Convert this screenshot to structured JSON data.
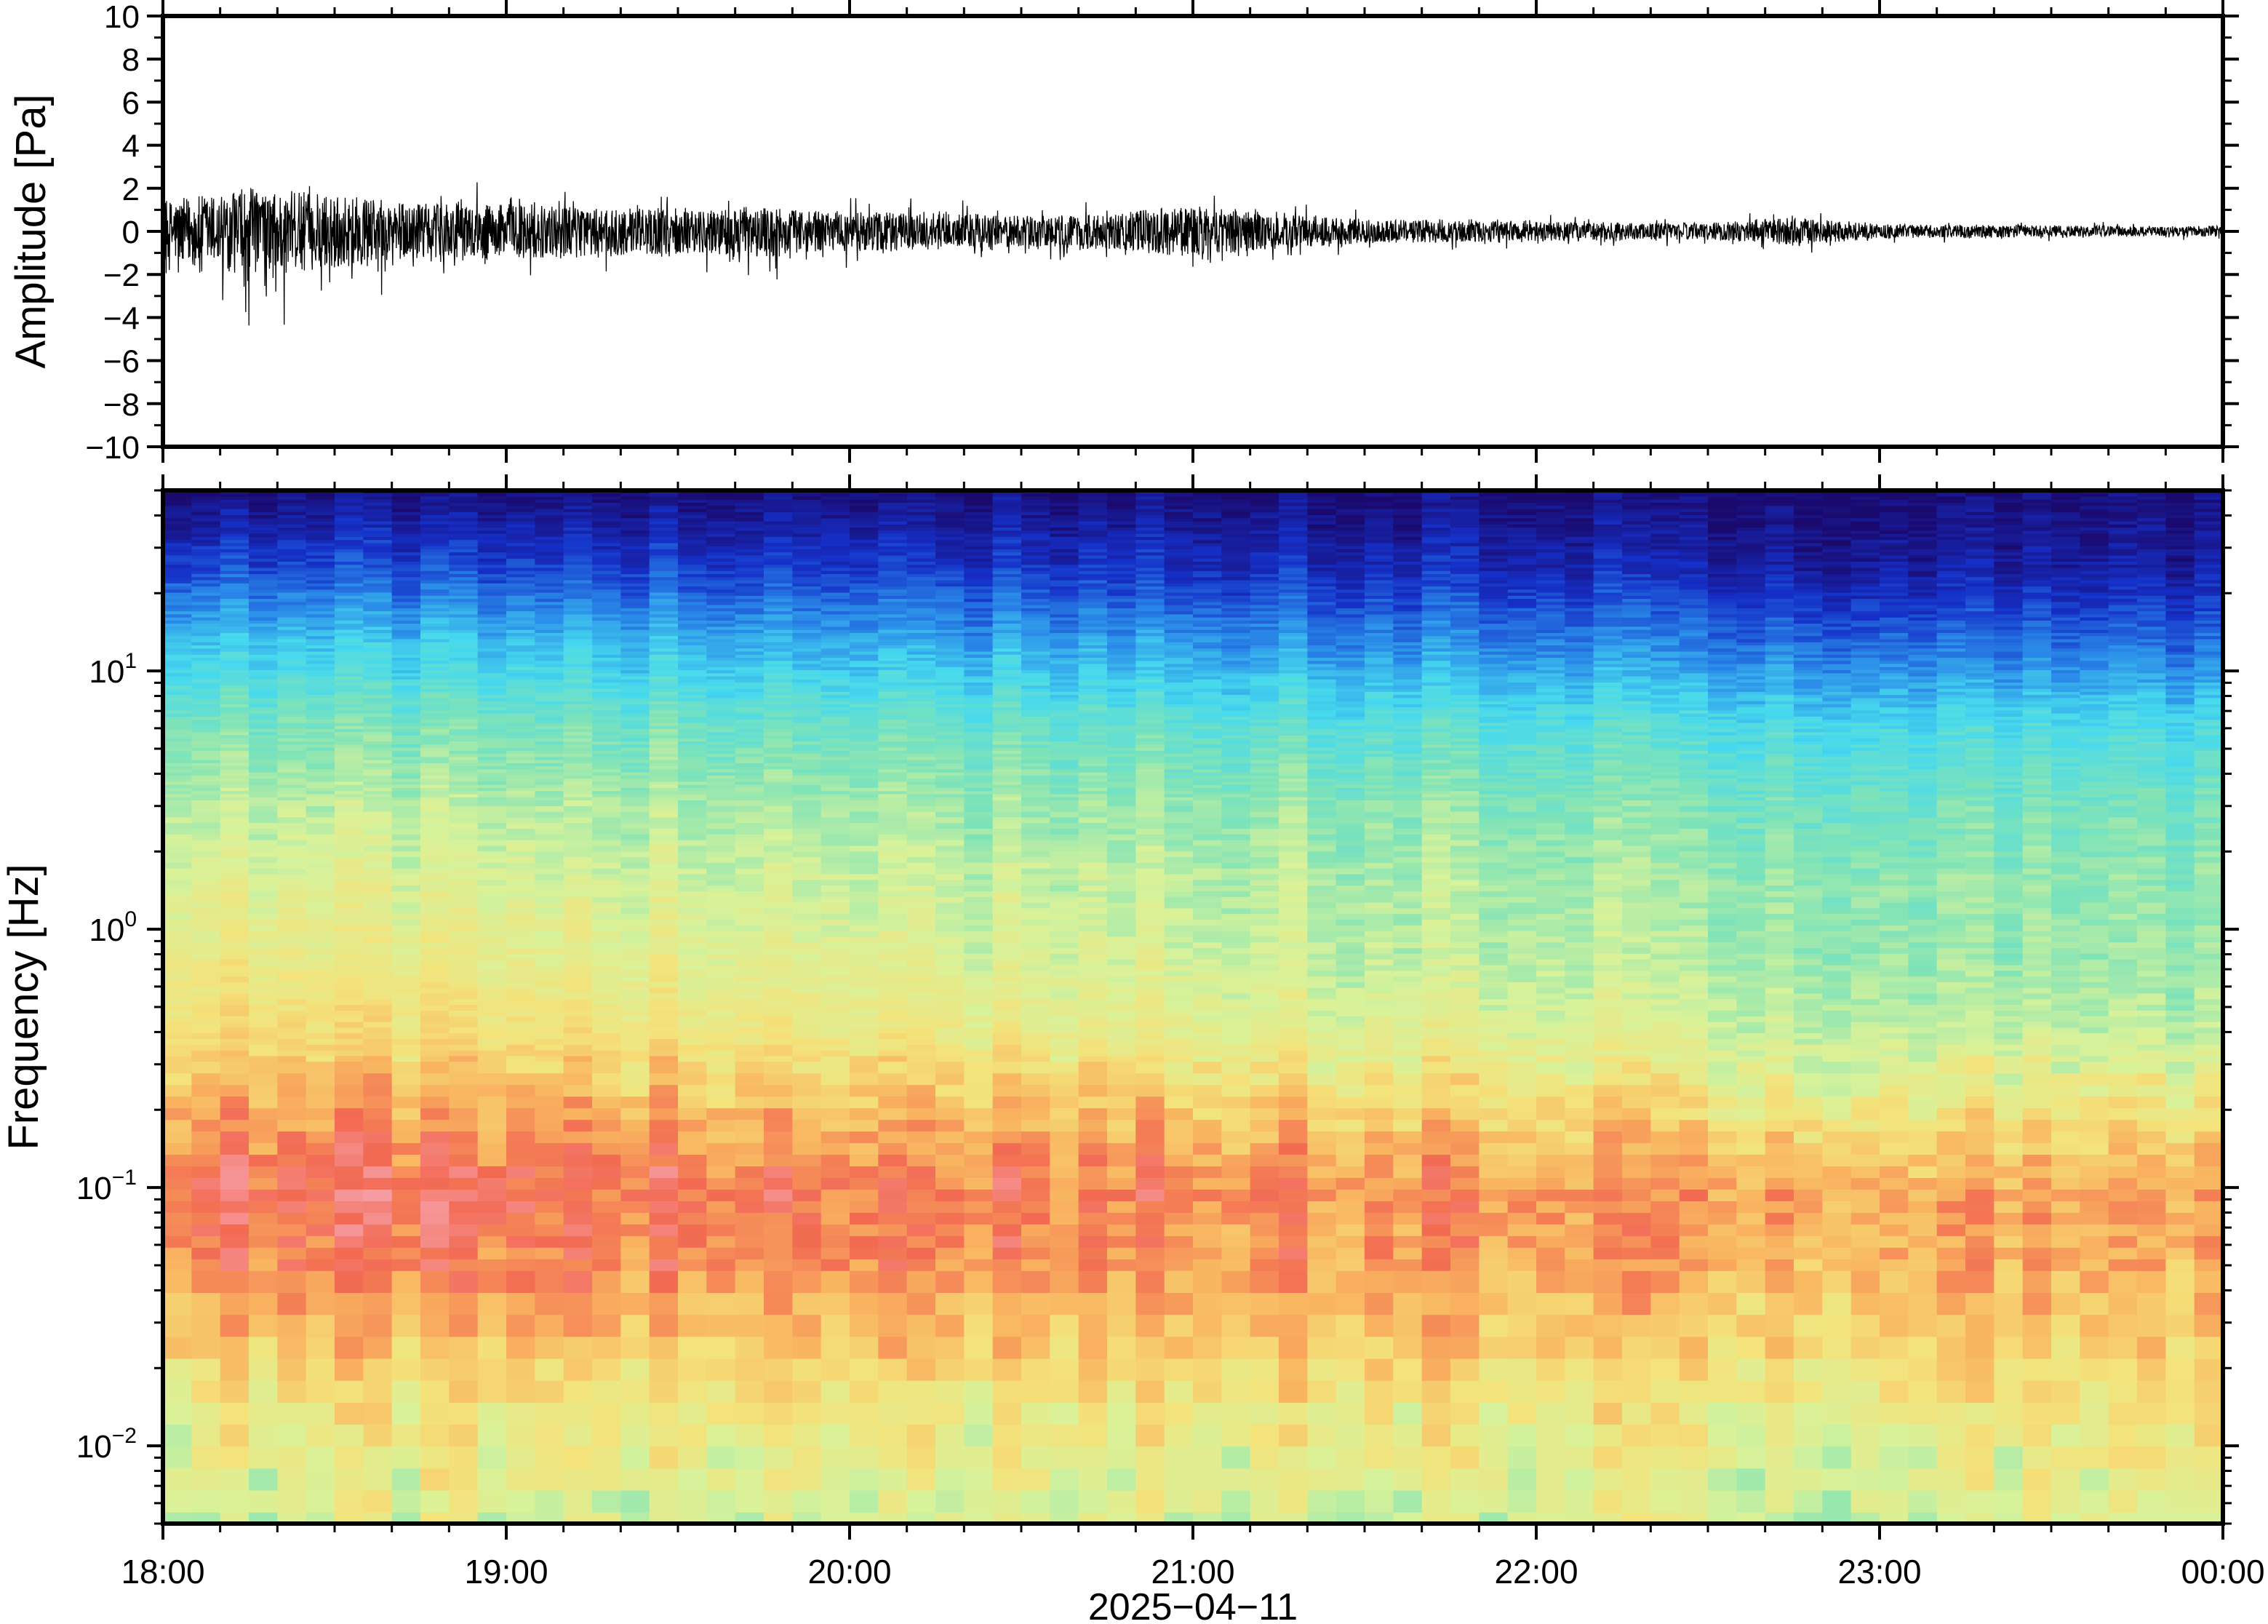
{
  "chart_data": [
    {
      "type": "line",
      "ylabel": "Amplitude [Pa]",
      "ylim": [
        -10,
        10
      ],
      "y_ticks": [
        10,
        8,
        6,
        4,
        2,
        0,
        -2,
        -4,
        -6,
        -8,
        -10
      ],
      "y_tick_labels": [
        "10",
        "8",
        "6",
        "4",
        "2",
        "0",
        "−2",
        "−4",
        "−6",
        "−8",
        "−10"
      ],
      "envelope": {
        "description_hours_since_18": [
          0,
          0.25,
          0.5,
          0.75,
          1.0,
          1.25,
          1.5,
          1.75,
          2.0,
          2.25,
          2.5,
          2.75,
          3.0,
          3.25,
          3.5,
          3.75,
          4.0,
          4.25,
          4.5,
          4.75,
          5.0,
          5.25,
          5.5,
          5.75,
          6.0
        ],
        "upper": [
          2.0,
          2.4,
          2.0,
          1.9,
          2.5,
          2.0,
          1.9,
          1.7,
          1.6,
          1.5,
          1.3,
          1.5,
          1.8,
          1.4,
          1.0,
          0.9,
          0.8,
          0.7,
          0.7,
          1.2,
          0.6,
          0.5,
          0.5,
          0.4,
          0.4
        ],
        "lower": [
          -3.0,
          -4.8,
          -4.2,
          -2.5,
          -2.2,
          -2.0,
          -1.8,
          -2.5,
          -1.7,
          -1.5,
          -1.3,
          -1.5,
          -2.5,
          -1.4,
          -1.0,
          -0.9,
          -0.8,
          -0.7,
          -0.7,
          -1.1,
          -0.6,
          -0.5,
          -0.5,
          -0.4,
          -0.5
        ]
      }
    },
    {
      "type": "heatmap",
      "ylabel": "Frequency [Hz]",
      "xlabel": "2025−04−11",
      "y_scale": "log",
      "ylim": [
        0.005,
        50
      ],
      "y_ticks": [
        10,
        1,
        0.1,
        0.01
      ],
      "y_tick_labels": [
        {
          "base": "10",
          "exp": "1"
        },
        {
          "base": "10",
          "exp": "0"
        },
        {
          "base": "10",
          "exp": "−1"
        },
        {
          "base": "10",
          "exp": "−2"
        }
      ],
      "x_tick_labels": [
        "18:00",
        "19:00",
        "20:00",
        "21:00",
        "22:00",
        "23:00",
        "00:00"
      ],
      "colormap": [
        "#1a0a6e",
        "#1530c8",
        "#2a8ae8",
        "#46d9ee",
        "#7fe3b8",
        "#d8f29a",
        "#f4e27a",
        "#f9b460",
        "#f26a52",
        "#f7a0a8"
      ],
      "power_profile": {
        "log10_freq": [
          1.7,
          1.4,
          1.1,
          0.8,
          0.5,
          0.2,
          -0.1,
          -0.4,
          -0.7,
          -1.0,
          -1.3,
          -1.6,
          -1.9,
          -2.3
        ],
        "level_start": [
          0.02,
          0.16,
          0.33,
          0.45,
          0.53,
          0.59,
          0.64,
          0.7,
          0.82,
          0.93,
          0.88,
          0.76,
          0.64,
          0.58
        ],
        "level_end": [
          0.0,
          0.05,
          0.17,
          0.33,
          0.41,
          0.45,
          0.46,
          0.51,
          0.63,
          0.78,
          0.76,
          0.7,
          0.62,
          0.56
        ]
      }
    }
  ]
}
